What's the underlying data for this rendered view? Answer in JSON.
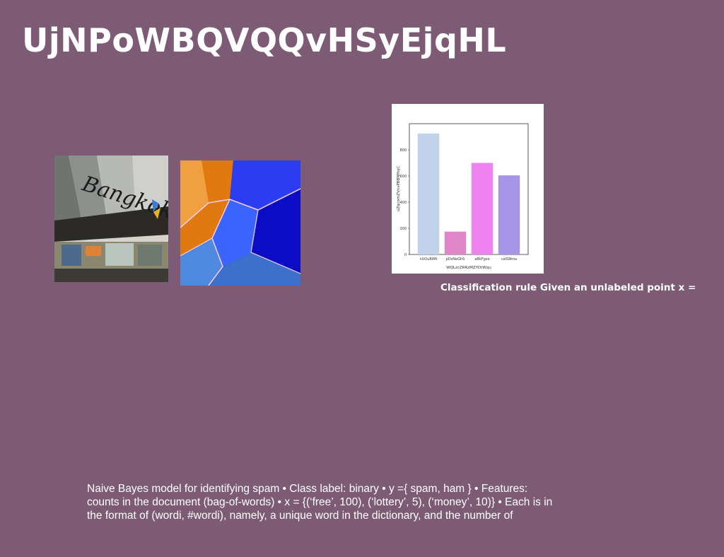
{
  "slide": {
    "title": "UjNPoWBQVQQvHSyEjqHL",
    "caption": "Classification rule Given an unlabeled point x =",
    "body": "Naive Bayes model for identifying spam • Class label: binary • y ={ spam, ham } • Features: counts in the document (bag-of-words) • x = {(‘free’, 100), (‘lottery’, 5), (‘money’, 10)} • Each is in the format of (wordi, #wordi), namely, a unique word in the dictionary, and the number of",
    "photo_sign_text": "Bangkok"
  },
  "colors": {
    "background": "#7d5b75",
    "text": "#ffffff"
  },
  "chart_data": {
    "type": "bar",
    "categories": [
      "nUOuRlMt",
      "pDzNeGhS",
      "aBkFgxo",
      "uxSWma"
    ],
    "values": [
      925,
      175,
      700,
      605
    ],
    "bar_colors": [
      "#c0d2ea",
      "#e087c9",
      "#ee82ee",
      "#a694e6"
    ],
    "xlabel": "WQLzcZRRzMZYDtWqu",
    "ylabel": "uZqcomZVnvPBBNHxjC",
    "ylim": [
      0,
      1000
    ],
    "yticks": [
      0,
      200,
      400,
      600,
      800
    ]
  }
}
